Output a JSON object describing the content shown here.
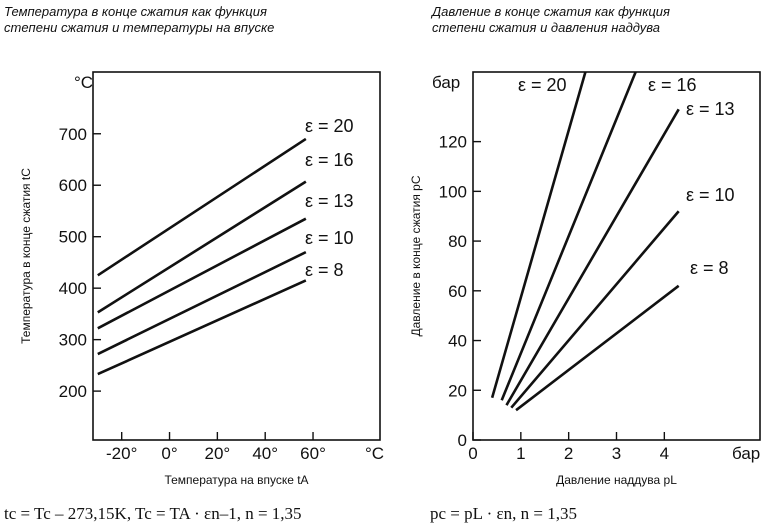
{
  "titles": {
    "left": [
      "Температура в конце сжатия как функция",
      "степени сжатия и температуры на впуске"
    ],
    "right": [
      "Давление в конце сжатия как функция",
      "степени сжатия и давления наддува"
    ]
  },
  "formulas": {
    "left": "tc = Tc – 273,15K, Tc = TA · εn–1, n = 1,35",
    "right": "pc = pL · εn, n = 1,35"
  },
  "chart_data": [
    {
      "type": "line",
      "xlabel": "Температура на впуске tA",
      "ylabel": "Температура в конце сжатия tC",
      "x_unit": "°C",
      "y_unit": "°C",
      "xlim": [
        -32,
        88
      ],
      "ylim": [
        105,
        820
      ],
      "x_ticks": [
        "-20°",
        "0°",
        "20°",
        "40°",
        "60°"
      ],
      "x_tick_values": [
        -20,
        0,
        20,
        40,
        60
      ],
      "y_ticks": [
        "200",
        "300",
        "400",
        "500",
        "600",
        "700"
      ],
      "y_tick_values": [
        200,
        300,
        400,
        500,
        600,
        700
      ],
      "series": [
        {
          "name": "ε = 20",
          "x": [
            -30,
            57
          ],
          "y": [
            425,
            690
          ]
        },
        {
          "name": "ε = 16",
          "x": [
            -30,
            57
          ],
          "y": [
            353,
            607
          ]
        },
        {
          "name": "ε = 13",
          "x": [
            -30,
            57
          ],
          "y": [
            322,
            535
          ]
        },
        {
          "name": "ε = 10",
          "x": [
            -30,
            57
          ],
          "y": [
            272,
            470
          ]
        },
        {
          "name": "ε = 8",
          "x": [
            -30,
            57
          ],
          "y": [
            233,
            415
          ]
        }
      ]
    },
    {
      "type": "line",
      "xlabel": "Давление наддува pL",
      "ylabel": "Давление в конце сжатия pC",
      "x_unit": "бар",
      "y_unit": "бар",
      "xlim": [
        0,
        6
      ],
      "ylim": [
        0,
        148
      ],
      "x_ticks": [
        "0",
        "1",
        "2",
        "3",
        "4"
      ],
      "x_tick_values": [
        0,
        1,
        2,
        3,
        4
      ],
      "y_ticks": [
        "0",
        "20",
        "40",
        "60",
        "80",
        "100",
        "120"
      ],
      "y_tick_values": [
        0,
        20,
        40,
        60,
        80,
        100,
        120
      ],
      "series": [
        {
          "name": "ε = 20",
          "x": [
            0.4,
            2.35
          ],
          "y": [
            17,
            148
          ]
        },
        {
          "name": "ε = 16",
          "x": [
            0.6,
            3.4
          ],
          "y": [
            16,
            148
          ]
        },
        {
          "name": "ε = 13",
          "x": [
            0.7,
            4.3
          ],
          "y": [
            14,
            133
          ]
        },
        {
          "name": "ε = 10",
          "x": [
            0.8,
            4.3
          ],
          "y": [
            13,
            92
          ]
        },
        {
          "name": "ε = 8",
          "x": [
            0.9,
            4.3
          ],
          "y": [
            12,
            62
          ]
        }
      ]
    }
  ]
}
